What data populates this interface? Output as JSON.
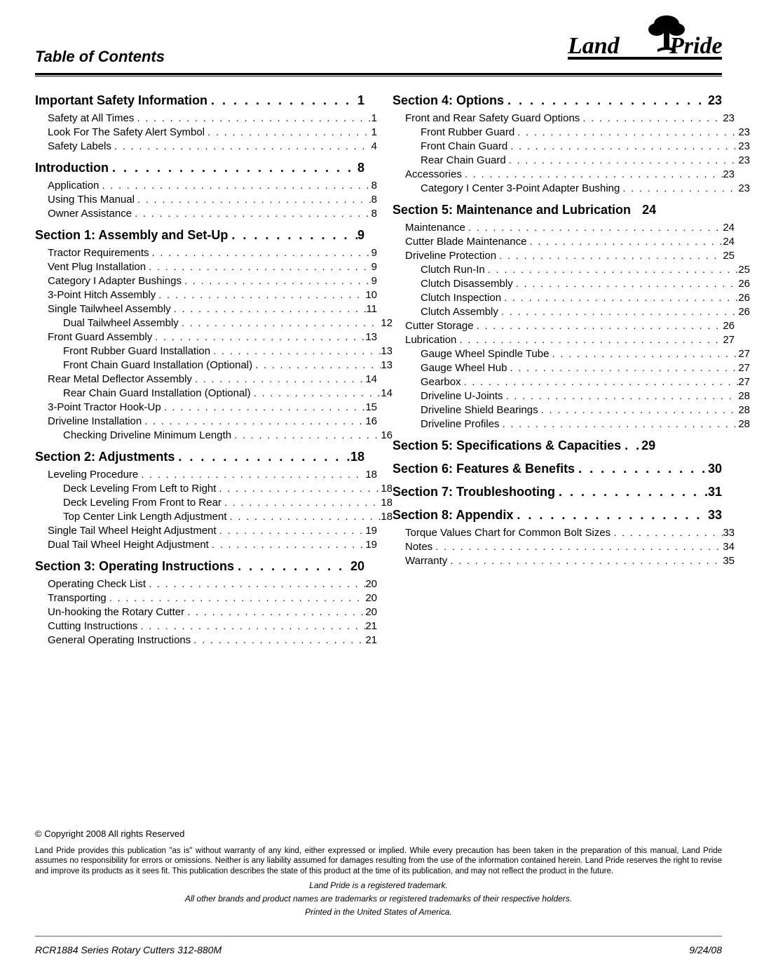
{
  "header": {
    "title": "Table of Contents"
  },
  "toc": {
    "left": [
      {
        "level": 0,
        "label": "Important Safety Information",
        "page": "1",
        "first": true
      },
      {
        "level": 1,
        "label": "Safety at All Times",
        "page": "1"
      },
      {
        "level": 1,
        "label": "Look For The Safety Alert Symbol",
        "page": "1"
      },
      {
        "level": 1,
        "label": "Safety Labels",
        "page": "4"
      },
      {
        "level": 0,
        "label": "Introduction",
        "page": "8"
      },
      {
        "level": 1,
        "label": "Application",
        "page": "8"
      },
      {
        "level": 1,
        "label": "Using This Manual",
        "page": "8"
      },
      {
        "level": 1,
        "label": "Owner Assistance",
        "page": "8"
      },
      {
        "level": 0,
        "label": "Section 1: Assembly and Set-Up",
        "page": "9"
      },
      {
        "level": 1,
        "label": "Tractor Requirements",
        "page": "9"
      },
      {
        "level": 1,
        "label": "Vent Plug Installation",
        "page": "9"
      },
      {
        "level": 1,
        "label": "Category I Adapter Bushings",
        "page": "9"
      },
      {
        "level": 1,
        "label": "3-Point Hitch Assembly",
        "page": "10"
      },
      {
        "level": 1,
        "label": "Single Tailwheel Assembly",
        "page": "11"
      },
      {
        "level": 2,
        "label": "Dual Tailwheel Assembly",
        "page": "12"
      },
      {
        "level": 1,
        "label": "Front Guard Assembly",
        "page": "13"
      },
      {
        "level": 2,
        "label": "Front Rubber Guard Installation",
        "page": "13"
      },
      {
        "level": 2,
        "label": "Front Chain Guard Installation (Optional)",
        "page": "13"
      },
      {
        "level": 1,
        "label": "Rear Metal Deflector Assembly",
        "page": "14"
      },
      {
        "level": 2,
        "label": "Rear Chain Guard Installation (Optional)",
        "page": "14"
      },
      {
        "level": 1,
        "label": "3-Point Tractor Hook-Up",
        "page": "15"
      },
      {
        "level": 1,
        "label": "Driveline Installation",
        "page": "16"
      },
      {
        "level": 2,
        "label": "Checking Driveline Minimum Length",
        "page": "16"
      },
      {
        "level": 0,
        "label": "Section 2: Adjustments",
        "page": "18"
      },
      {
        "level": 1,
        "label": "Leveling Procedure",
        "page": "18"
      },
      {
        "level": 2,
        "label": "Deck Leveling From Left to Right",
        "page": "18"
      },
      {
        "level": 2,
        "label": "Deck Leveling From Front to Rear",
        "page": "18"
      },
      {
        "level": 2,
        "label": "Top Center Link Length Adjustment",
        "page": "18"
      },
      {
        "level": 1,
        "label": "Single Tail Wheel Height Adjustment",
        "page": "19"
      },
      {
        "level": 1,
        "label": "Dual Tail Wheel Height Adjustment",
        "page": "19"
      },
      {
        "level": 0,
        "label": "Section 3: Operating Instructions",
        "page": "20"
      },
      {
        "level": 1,
        "label": "Operating Check List",
        "page": "20"
      },
      {
        "level": 1,
        "label": "Transporting",
        "page": "20"
      },
      {
        "level": 1,
        "label": "Un-hooking the Rotary Cutter",
        "page": "20"
      },
      {
        "level": 1,
        "label": "Cutting Instructions",
        "page": "21"
      },
      {
        "level": 1,
        "label": "General Operating Instructions",
        "page": "21"
      }
    ],
    "right": [
      {
        "level": 0,
        "label": "Section 4: Options",
        "page": "23",
        "first": true
      },
      {
        "level": 1,
        "label": "Front and Rear Safety Guard Options",
        "page": "23"
      },
      {
        "level": 2,
        "label": "Front Rubber Guard",
        "page": "23"
      },
      {
        "level": 2,
        "label": "Front Chain Guard",
        "page": "23"
      },
      {
        "level": 2,
        "label": "Rear Chain Guard",
        "page": "23"
      },
      {
        "level": 1,
        "label": "Accessories",
        "page": "23"
      },
      {
        "level": 2,
        "label": "Category I Center 3-Point Adapter Bushing",
        "page": "23"
      },
      {
        "level": 0,
        "label": "Section 5: Maintenance and Lubrication",
        "page": "24",
        "nodots": true
      },
      {
        "level": 1,
        "label": "Maintenance",
        "page": "24"
      },
      {
        "level": 1,
        "label": "Cutter Blade Maintenance",
        "page": "24"
      },
      {
        "level": 1,
        "label": "Driveline Protection",
        "page": "25"
      },
      {
        "level": 2,
        "label": "Clutch Run-In",
        "page": "25"
      },
      {
        "level": 2,
        "label": "Clutch Disassembly",
        "page": "26"
      },
      {
        "level": 2,
        "label": "Clutch Inspection",
        "page": "26"
      },
      {
        "level": 2,
        "label": "Clutch Assembly",
        "page": "26"
      },
      {
        "level": 1,
        "label": "Cutter Storage",
        "page": "26"
      },
      {
        "level": 1,
        "label": "Lubrication",
        "page": "27"
      },
      {
        "level": 2,
        "label": "Gauge Wheel Spindle Tube",
        "page": "27"
      },
      {
        "level": 2,
        "label": "Gauge Wheel Hub",
        "page": "27"
      },
      {
        "level": 2,
        "label": "Gearbox",
        "page": "27"
      },
      {
        "level": 2,
        "label": "Driveline U-Joints",
        "page": "28"
      },
      {
        "level": 2,
        "label": "Driveline Shield Bearings",
        "page": "28"
      },
      {
        "level": 2,
        "label": "Driveline Profiles",
        "page": "28"
      },
      {
        "level": 0,
        "label": "Section 5: Specifications & Capacities",
        "page": "29",
        "shortdots": true
      },
      {
        "level": 0,
        "label": "Section 6: Features & Benefits",
        "page": "30"
      },
      {
        "level": 0,
        "label": "Section 7: Troubleshooting",
        "page": "31"
      },
      {
        "level": 0,
        "label": "Section 8: Appendix",
        "page": "33"
      },
      {
        "level": 1,
        "label": "Torque Values Chart for Common Bolt Sizes",
        "page": "33"
      },
      {
        "level": 1,
        "label": "Notes",
        "page": "34"
      },
      {
        "level": 1,
        "label": "Warranty",
        "page": "35"
      }
    ]
  },
  "legal": {
    "copyright": "© Copyright 2008 All rights Reserved",
    "disclaimer": "Land Pride provides this publication \"as is\" without warranty of any kind, either expressed or implied. While every precaution has been taken in the preparation of this manual, Land Pride assumes no responsibility for errors or omissions. Neither is any liability assumed for damages resulting from the use of the information contained herein. Land Pride reserves the right to revise and improve its products as it sees fit. This publication describes the state of this product at the time of its publication, and may not reflect the product in the future.",
    "trademark1": "Land Pride is a registered trademark.",
    "trademark2": "All other brands and product names are trademarks or registered trademarks of their respective holders.",
    "printed": "Printed in the United States of America."
  },
  "footer": {
    "left": "RCR1884 Series Rotary Cutters   312-880M",
    "right": "9/24/08"
  }
}
